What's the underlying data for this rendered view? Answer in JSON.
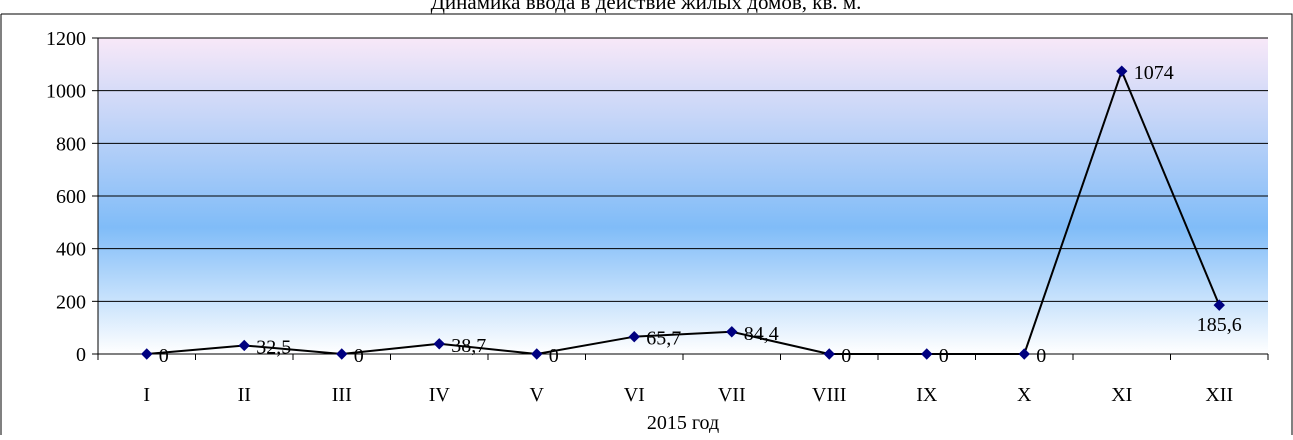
{
  "chart_data": {
    "type": "line",
    "title": "Динамика ввода в действие жилых домов, кв. м.",
    "xlabel": "2015 год",
    "ylabel": "",
    "categories": [
      "I",
      "II",
      "III",
      "IV",
      "V",
      "VI",
      "VII",
      "VIII",
      "IX",
      "X",
      "XI",
      "XII"
    ],
    "series": [
      {
        "values": [
          0,
          32.5,
          0,
          38.7,
          0,
          65.7,
          84.4,
          0,
          0,
          0,
          1074,
          185.6
        ],
        "labels": [
          "0",
          "32,5",
          "0",
          "38,7",
          "0",
          "65,7",
          "84,4",
          "0",
          "0",
          "0",
          "1074",
          "185,6"
        ]
      }
    ],
    "ylim": [
      0,
      1200
    ],
    "yticks": [
      0,
      200,
      400,
      600,
      800,
      1000,
      1200
    ],
    "grid": true,
    "legend": "none",
    "colors": {
      "line": "#000000",
      "marker": "#000080",
      "grid": "#000000",
      "bg_top": "#f8e8f8",
      "bg_mid": "#80bcf8",
      "bg_bottom": "#ffffff"
    }
  }
}
